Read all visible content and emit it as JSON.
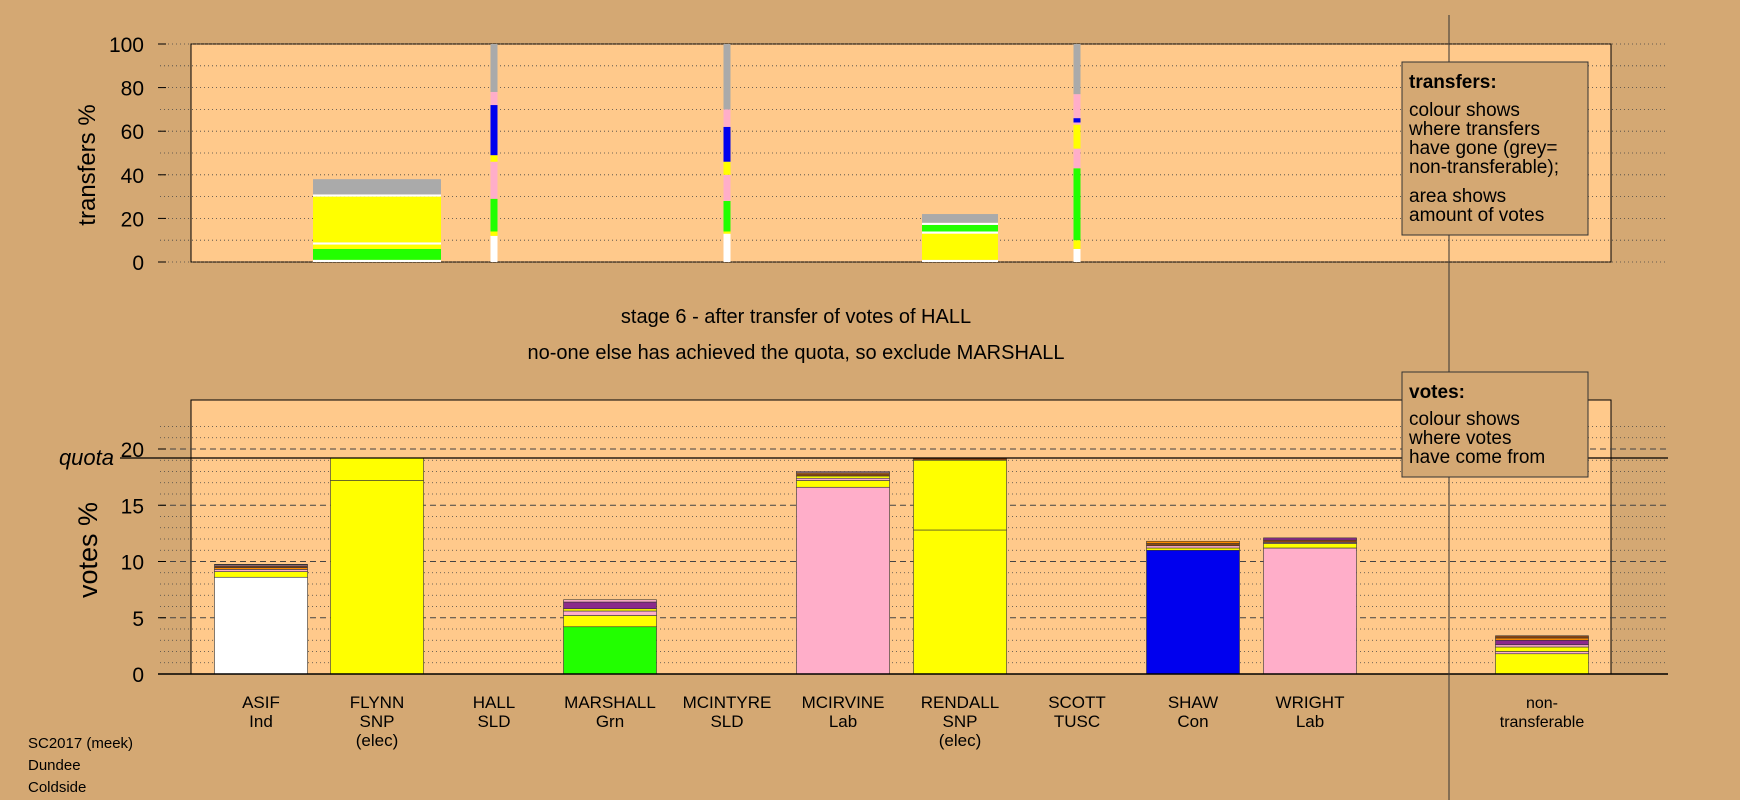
{
  "stage_title": "stage 6 - after transfer of votes of HALL",
  "stage_note": "no-one else has achieved the quota, so exclude MARSHALL",
  "footer": [
    "SC2017 (meek)",
    "Dundee",
    "Coldside"
  ],
  "legend_transfers": {
    "heading": "transfers:",
    "lines_a": [
      "colour shows",
      "where transfers",
      "have gone (grey=",
      "non-transferable);"
    ],
    "lines_b": [
      "area shows",
      "amount of votes"
    ]
  },
  "legend_votes": {
    "heading": "votes:",
    "lines": [
      "colour shows",
      "where votes",
      "have come from"
    ]
  },
  "colors": {
    "background": "#d4a873",
    "plot_bg": "#ffc98b",
    "Ind": "#ffffff",
    "SNP": "#ffff00",
    "SLD": "#ffaec9",
    "Grn": "#22ff00",
    "Lab": "#ffaec9",
    "Con": "#0000ee",
    "TUSC": "#ffaec9",
    "nontransferable": "#aaaaaa",
    "purple": "#8b2a8b",
    "brown": "#8b4513",
    "orange": "#ff8c00"
  },
  "chart_data": [
    {
      "type": "bar",
      "name": "transfers",
      "ylabel": "transfers %",
      "ylim": [
        0,
        100
      ],
      "yticks": [
        0,
        20,
        40,
        60,
        80,
        100
      ],
      "categories": [
        "ASIF",
        "FLYNN",
        "HALL",
        "MARSHALL",
        "MCINTYRE",
        "MCIRVINE",
        "RENDALL",
        "SCOTT",
        "SHAW",
        "WRIGHT"
      ],
      "bars": [
        {
          "candidate": "FLYNN",
          "width": "wide",
          "segments": [
            {
              "color": "white",
              "from": 0,
              "to": 1
            },
            {
              "color": "green",
              "from": 1,
              "to": 6
            },
            {
              "color": "yellow",
              "from": 6,
              "to": 8
            },
            {
              "color": "white",
              "from": 8,
              "to": 9
            },
            {
              "color": "yellow",
              "from": 9,
              "to": 30
            },
            {
              "color": "white",
              "from": 30,
              "to": 31
            },
            {
              "color": "grey",
              "from": 31,
              "to": 38
            }
          ]
        },
        {
          "candidate": "HALL",
          "width": "thin",
          "segments": [
            {
              "color": "white",
              "from": 0,
              "to": 12
            },
            {
              "color": "yellow",
              "from": 12,
              "to": 14
            },
            {
              "color": "green",
              "from": 14,
              "to": 29
            },
            {
              "color": "pink",
              "from": 29,
              "to": 46
            },
            {
              "color": "yellow",
              "from": 46,
              "to": 49
            },
            {
              "color": "blue",
              "from": 49,
              "to": 72
            },
            {
              "color": "pink",
              "from": 72,
              "to": 78
            },
            {
              "color": "grey",
              "from": 78,
              "to": 100
            }
          ]
        },
        {
          "candidate": "MCINTYRE",
          "width": "thin",
          "segments": [
            {
              "color": "white",
              "from": 0,
              "to": 13
            },
            {
              "color": "yellow",
              "from": 13,
              "to": 14
            },
            {
              "color": "green",
              "from": 14,
              "to": 28
            },
            {
              "color": "pink",
              "from": 28,
              "to": 40
            },
            {
              "color": "yellow",
              "from": 40,
              "to": 46
            },
            {
              "color": "blue",
              "from": 46,
              "to": 62
            },
            {
              "color": "pink",
              "from": 62,
              "to": 70
            },
            {
              "color": "grey",
              "from": 70,
              "to": 100
            }
          ]
        },
        {
          "candidate": "RENDALL",
          "width": "wide",
          "segments": [
            {
              "color": "white",
              "from": 0,
              "to": 1
            },
            {
              "color": "yellow",
              "from": 1,
              "to": 13
            },
            {
              "color": "white",
              "from": 13,
              "to": 14
            },
            {
              "color": "green",
              "from": 14,
              "to": 17
            },
            {
              "color": "white",
              "from": 17,
              "to": 18
            },
            {
              "color": "grey",
              "from": 18,
              "to": 22
            }
          ]
        },
        {
          "candidate": "SCOTT",
          "width": "thin",
          "segments": [
            {
              "color": "white",
              "from": 0,
              "to": 6
            },
            {
              "color": "yellow",
              "from": 6,
              "to": 10
            },
            {
              "color": "green",
              "from": 10,
              "to": 43
            },
            {
              "color": "pink",
              "from": 43,
              "to": 52
            },
            {
              "color": "yellow",
              "from": 52,
              "to": 63
            },
            {
              "color": "pink",
              "from": 63,
              "to": 64
            },
            {
              "color": "blue",
              "from": 64,
              "to": 66
            },
            {
              "color": "pink",
              "from": 66,
              "to": 77
            },
            {
              "color": "grey",
              "from": 77,
              "to": 100
            }
          ]
        }
      ]
    },
    {
      "type": "bar",
      "name": "votes",
      "ylabel": "votes %",
      "ylim": [
        0,
        25
      ],
      "yticks": [
        0,
        5,
        10,
        15,
        20
      ],
      "quota": 19.2,
      "quota_label": "quota",
      "categories": [
        "ASIF",
        "FLYNN",
        "HALL",
        "MARSHALL",
        "MCINTYRE",
        "MCIRVINE",
        "RENDALL",
        "SCOTT",
        "SHAW",
        "WRIGHT",
        "non-transferable"
      ],
      "labels": [
        [
          "ASIF",
          "Ind"
        ],
        [
          "FLYNN",
          "SNP",
          "(elec)"
        ],
        [
          "HALL",
          "SLD"
        ],
        [
          "MARSHALL",
          "Grn"
        ],
        [
          "MCINTYRE",
          "SLD"
        ],
        [
          "MCIRVINE",
          "Lab"
        ],
        [
          "RENDALL",
          "SNP",
          "(elec)"
        ],
        [
          "SCOTT",
          "TUSC"
        ],
        [
          "SHAW",
          "Con"
        ],
        [
          "WRIGHT",
          "Lab"
        ],
        [
          "non-",
          "transferable"
        ]
      ],
      "stacks": [
        {
          "candidate": "ASIF",
          "segments": [
            {
              "color": "white",
              "value": 8.6
            },
            {
              "color": "yellow",
              "value": 0.5
            },
            {
              "color": "pink",
              "value": 0.2
            },
            {
              "color": "orange",
              "value": 0.15
            },
            {
              "color": "brown",
              "value": 0.15
            },
            {
              "color": "pink",
              "value": 0.1
            },
            {
              "color": "purple",
              "value": 0.05
            }
          ]
        },
        {
          "candidate": "FLYNN",
          "segments": [
            {
              "color": "yellow",
              "value": 17.2
            },
            {
              "color": "yellow",
              "value": 2.0
            }
          ]
        },
        {
          "candidate": "HALL",
          "segments": []
        },
        {
          "candidate": "MARSHALL",
          "segments": [
            {
              "color": "green",
              "value": 4.2
            },
            {
              "color": "yellow",
              "value": 1.0
            },
            {
              "color": "pink",
              "value": 0.4
            },
            {
              "color": "yellow",
              "value": 0.2
            },
            {
              "color": "purple",
              "value": 0.6
            },
            {
              "color": "pink",
              "value": 0.2
            }
          ]
        },
        {
          "candidate": "MCINTYRE",
          "segments": []
        },
        {
          "candidate": "MCIRVINE",
          "segments": [
            {
              "color": "pink",
              "value": 16.6
            },
            {
              "color": "yellow",
              "value": 0.6
            },
            {
              "color": "pink",
              "value": 0.2
            },
            {
              "color": "yellow",
              "value": 0.2
            },
            {
              "color": "brown",
              "value": 0.2
            },
            {
              "color": "orange",
              "value": 0.1
            },
            {
              "color": "pink",
              "value": 0.1
            }
          ]
        },
        {
          "candidate": "RENDALL",
          "segments": [
            {
              "color": "yellow",
              "value": 12.8
            },
            {
              "color": "yellow",
              "value": 6.2
            },
            {
              "color": "brown",
              "value": 0.2
            }
          ]
        },
        {
          "candidate": "SCOTT",
          "segments": []
        },
        {
          "candidate": "SHAW",
          "segments": [
            {
              "color": "blue",
              "value": 11.0
            },
            {
              "color": "yellow",
              "value": 0.2
            },
            {
              "color": "pink",
              "value": 0.2
            },
            {
              "color": "brown",
              "value": 0.2
            },
            {
              "color": "orange",
              "value": 0.2
            }
          ]
        },
        {
          "candidate": "WRIGHT",
          "segments": [
            {
              "color": "pink",
              "value": 11.2
            },
            {
              "color": "yellow",
              "value": 0.4
            },
            {
              "color": "pink",
              "value": 0.1
            },
            {
              "color": "brown",
              "value": 0.2
            },
            {
              "color": "purple",
              "value": 0.2
            }
          ]
        },
        {
          "candidate": "non-transferable",
          "segments": [
            {
              "color": "yellow",
              "value": 1.8
            },
            {
              "color": "pink",
              "value": 0.2
            },
            {
              "color": "yellow",
              "value": 0.4
            },
            {
              "color": "pink",
              "value": 0.2
            },
            {
              "color": "purple",
              "value": 0.4
            },
            {
              "color": "orange",
              "value": 0.2
            },
            {
              "color": "brown",
              "value": 0.2
            }
          ]
        }
      ]
    }
  ]
}
